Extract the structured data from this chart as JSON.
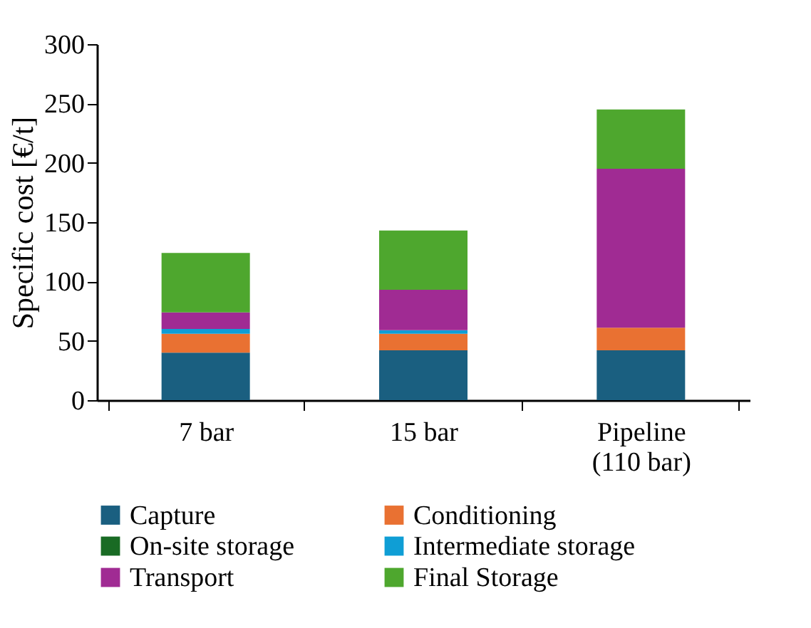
{
  "chart_data": {
    "type": "bar",
    "stacked": true,
    "ylabel": "Specific cost [€/t]",
    "categories": [
      "7 bar",
      "15 bar",
      "Pipeline\n(110 bar)"
    ],
    "series": [
      {
        "name": "Capture",
        "color": "#1a5f80",
        "values": [
          40,
          42,
          42
        ]
      },
      {
        "name": "Conditioning",
        "color": "#e97132",
        "values": [
          16,
          14,
          19
        ]
      },
      {
        "name": "On-site storage",
        "color": "#196b24",
        "values": [
          0,
          0,
          0
        ]
      },
      {
        "name": "Intermediate storage",
        "color": "#0f9ed5",
        "values": [
          4,
          3,
          0
        ]
      },
      {
        "name": "Transport",
        "color": "#a02b93",
        "values": [
          14,
          34,
          134
        ]
      },
      {
        "name": "Final Storage",
        "color": "#4ea72e",
        "values": [
          50,
          50,
          50
        ]
      }
    ],
    "ylim": [
      0,
      300
    ],
    "yticks": [
      0,
      50,
      100,
      150,
      200,
      250,
      300
    ],
    "grid": false,
    "legend": "bottom"
  }
}
